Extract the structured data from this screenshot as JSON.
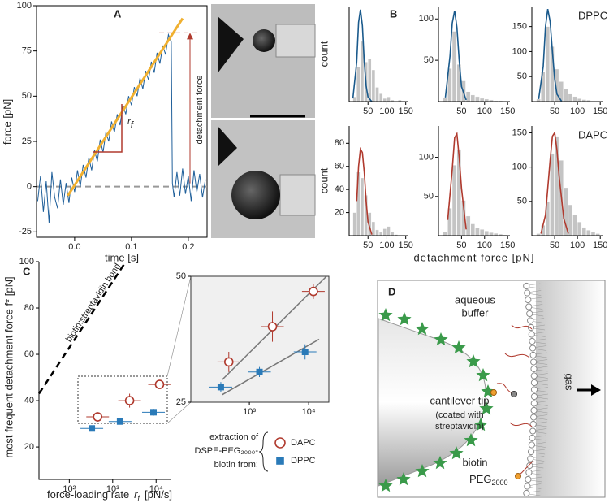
{
  "chart_data": [
    {
      "type": "trace",
      "panel_label": "A",
      "xlabel": "time  [s]",
      "ylabel": "force  [pN]",
      "xlim": [
        -0.067,
        0.233
      ],
      "ylim": [
        -28,
        100
      ],
      "xticks": [
        {
          "value": 0,
          "label": "0.0"
        },
        {
          "value": 0.1,
          "label": "0.1"
        },
        {
          "value": 0.2,
          "label": "0.2"
        }
      ],
      "yticks": [
        -25,
        0,
        25,
        50,
        75,
        100
      ],
      "series": [
        {
          "color": "#1f5f9a",
          "x": [
            -0.065,
            -0.06,
            -0.055,
            -0.05,
            -0.045,
            -0.04,
            -0.035,
            -0.03,
            -0.025,
            -0.02,
            -0.015,
            -0.01,
            -0.005,
            0.0,
            0.005,
            0.01,
            0.015,
            0.02,
            0.025,
            0.03,
            0.035,
            0.04,
            0.045,
            0.05,
            0.055,
            0.06,
            0.065,
            0.07,
            0.075,
            0.08,
            0.085,
            0.09,
            0.095,
            0.1,
            0.105,
            0.11,
            0.115,
            0.12,
            0.125,
            0.13,
            0.135,
            0.14,
            0.145,
            0.15,
            0.155,
            0.16,
            0.165,
            0.17,
            0.172,
            0.175,
            0.18,
            0.185,
            0.19,
            0.195,
            0.2,
            0.205,
            0.21,
            0.215,
            0.22,
            0.225,
            0.23
          ],
          "values": [
            -8,
            6,
            -14,
            3,
            -20,
            8,
            -6,
            -12,
            4,
            -10,
            2,
            -9,
            5,
            -3,
            9,
            0,
            12,
            5,
            16,
            9,
            20,
            14,
            26,
            19,
            30,
            25,
            36,
            30,
            40,
            34,
            45,
            40,
            50,
            45,
            55,
            50,
            60,
            54,
            64,
            59,
            69,
            63,
            74,
            68,
            78,
            73,
            84,
            80,
            2,
            -6,
            8,
            -5,
            10,
            -4,
            6,
            -8,
            9,
            -3,
            7,
            -6,
            4
          ]
        },
        {
          "color": "#f0b030",
          "x": [
            -0.012,
            0.19
          ],
          "values": [
            -5,
            93
          ]
        }
      ],
      "baseline": 0,
      "detachment_level": 85,
      "rate_symbol": "r",
      "rate_sub": "f",
      "annotation": "detachment force"
    },
    {
      "type": "histogram",
      "ylabel": "count",
      "bins": [
        10,
        20,
        30,
        40,
        50,
        60,
        70,
        80,
        90,
        100,
        110,
        120,
        130,
        140,
        150
      ],
      "values": [
        3,
        22,
        38,
        25,
        27,
        20,
        9,
        5,
        2,
        3,
        1,
        0,
        1,
        0
      ],
      "color": "#c4c4c4",
      "xlim": [
        0,
        155
      ],
      "ylim": [
        0,
        60
      ],
      "xticks": [
        50,
        100,
        150
      ],
      "fit": {
        "color": "#1a5a8c",
        "x": [
          10,
          20,
          25,
          30,
          35,
          40,
          45,
          50,
          60
        ],
        "values": [
          2,
          25,
          50,
          58,
          48,
          25,
          10,
          3,
          0
        ]
      }
    },
    {
      "type": "histogram",
      "panel_label": "B",
      "bins": [
        10,
        20,
        30,
        40,
        50,
        60,
        70,
        80,
        90,
        100,
        110,
        120,
        130,
        140,
        150
      ],
      "values": [
        5,
        40,
        85,
        45,
        25,
        12,
        8,
        6,
        4,
        3,
        2,
        1,
        1,
        0
      ],
      "color": "#c4c4c4",
      "xlim": [
        0,
        155
      ],
      "ylim": [
        0,
        115
      ],
      "xticks": [
        50,
        100,
        150
      ],
      "yticks": [
        50,
        100
      ],
      "fit": {
        "color": "#1a5a8c",
        "x": [
          15,
          25,
          30,
          35,
          40,
          45,
          50,
          60
        ],
        "values": [
          5,
          55,
          95,
          110,
          90,
          50,
          18,
          2
        ]
      }
    },
    {
      "type": "histogram",
      "annotation": "DPPC",
      "bins": [
        10,
        20,
        30,
        40,
        50,
        60,
        70,
        80,
        90,
        100,
        110,
        120,
        130,
        140,
        150
      ],
      "values": [
        5,
        60,
        150,
        110,
        65,
        40,
        25,
        15,
        10,
        6,
        4,
        3,
        1,
        1
      ],
      "color": "#c4c4c4",
      "xlim": [
        0,
        155
      ],
      "ylim": [
        0,
        190
      ],
      "xticks": [
        50,
        100,
        150
      ],
      "yticks": [
        50,
        100,
        150
      ],
      "fit": {
        "color": "#1a5a8c",
        "x": [
          15,
          25,
          30,
          35,
          40,
          45,
          50,
          55,
          65
        ],
        "values": [
          5,
          70,
          150,
          185,
          160,
          100,
          45,
          15,
          1
        ]
      }
    },
    {
      "type": "histogram",
      "ylabel": "count",
      "bins": [
        10,
        20,
        30,
        40,
        50,
        60,
        70,
        80,
        90,
        100,
        110,
        120,
        130,
        140,
        150
      ],
      "values": [
        20,
        55,
        50,
        35,
        20,
        12,
        5,
        3,
        6,
        8,
        3,
        1,
        0,
        0
      ],
      "color": "#c4c4c4",
      "xlim": [
        0,
        155
      ],
      "ylim": [
        0,
        95
      ],
      "xticks": [
        50,
        100,
        150
      ],
      "yticks": [
        20,
        40,
        60,
        80
      ],
      "fit": {
        "color": "#b03a2e",
        "x": [
          20,
          25,
          30,
          35,
          40,
          45,
          50,
          60
        ],
        "values": [
          30,
          60,
          75,
          72,
          55,
          30,
          12,
          1
        ]
      }
    },
    {
      "type": "histogram",
      "xlabel": "detachment force  [pN]",
      "bins": [
        10,
        20,
        30,
        40,
        50,
        60,
        70,
        80,
        90,
        100,
        110,
        120,
        130,
        140,
        150
      ],
      "values": [
        5,
        35,
        90,
        110,
        45,
        25,
        15,
        10,
        8,
        6,
        4,
        3,
        2,
        1
      ],
      "color": "#c4c4c4",
      "xlim": [
        0,
        155
      ],
      "ylim": [
        0,
        140
      ],
      "xticks": [
        50,
        100,
        150
      ],
      "yticks": [
        50,
        100
      ],
      "fit": {
        "color": "#b03a2e",
        "x": [
          20,
          30,
          35,
          40,
          45,
          50,
          60
        ],
        "values": [
          20,
          85,
          125,
          130,
          100,
          60,
          8
        ]
      }
    },
    {
      "type": "histogram",
      "annotation": "DAPC",
      "bins": [
        10,
        20,
        30,
        40,
        50,
        60,
        70,
        80,
        90,
        100,
        110,
        120,
        130,
        140,
        150
      ],
      "values": [
        3,
        15,
        50,
        120,
        145,
        110,
        70,
        45,
        30,
        20,
        12,
        8,
        5,
        3
      ],
      "color": "#c4c4c4",
      "xlim": [
        0,
        155
      ],
      "ylim": [
        0,
        160
      ],
      "xticks": [
        50,
        100,
        150
      ],
      "yticks": [
        50,
        100,
        150
      ],
      "fit": {
        "color": "#b03a2e",
        "x": [
          20,
          30,
          40,
          45,
          50,
          55,
          60,
          70,
          80
        ],
        "values": [
          3,
          30,
          110,
          145,
          150,
          125,
          85,
          25,
          3
        ]
      }
    },
    {
      "type": "scatter",
      "panel_label": "C",
      "xlog": true,
      "xlim": [
        20,
        21500
      ],
      "ylim": [
        6,
        100
      ],
      "xticks": [
        {
          "value": 100,
          "label": "10²"
        },
        {
          "value": 1000,
          "label": "10³"
        },
        {
          "value": 10000,
          "label": "10⁴"
        }
      ],
      "yticks": [
        20,
        40,
        60,
        80,
        100
      ],
      "ylabel": "most frequent detachment force  f*  [pN]",
      "xlabel": {
        "text": "force-loading rate",
        "symbol": "r",
        "sub": "f",
        "unit": "[pN/s]"
      },
      "series": [
        {
          "name": "DAPC",
          "color": "#b03a2e",
          "marker": "circle",
          "x": [
            450,
            2450,
            12000
          ],
          "values": [
            33,
            40,
            47
          ],
          "errors": [
            2,
            3,
            1.5
          ]
        },
        {
          "name": "DPPC",
          "color": "#2a7ab8",
          "marker": "square",
          "x": [
            330,
            1480,
            8700
          ],
          "values": [
            28,
            31,
            35
          ],
          "errors": [
            1,
            1,
            1.5
          ]
        }
      ],
      "bond_line": {
        "label": "biotin:streptavidin bond",
        "x": [
          20,
          2000
        ],
        "values": [
          43,
          100
        ]
      },
      "legend_title": [
        "extraction of",
        "DSPE-PEG₂₀₀₀-",
        "biotin from:"
      ]
    },
    {
      "type": "inset",
      "xlog": true,
      "xlim": [
        103,
        21900
      ],
      "ylim": [
        25,
        50
      ],
      "xticks": [
        {
          "value": 1000,
          "label": "10³"
        },
        {
          "value": 10000,
          "label": "10⁴"
        }
      ],
      "yticks": [
        25,
        50
      ],
      "trends": [
        {
          "color": "#777777",
          "x": [
            350,
            20000
          ],
          "values": [
            29.5,
            50
          ]
        },
        {
          "color": "#777777",
          "x": [
            350,
            15000
          ],
          "values": [
            26.5,
            37.5
          ]
        }
      ]
    }
  ],
  "diagram": {
    "panel_label": "D",
    "buffer": [
      "aqueous",
      "buffer"
    ],
    "tip": [
      "cantilever tip",
      "(coated with",
      "streptavidin)"
    ],
    "gas": "gas",
    "biotin": "biotin",
    "peg": "PEG",
    "peg_sub": "2000"
  }
}
